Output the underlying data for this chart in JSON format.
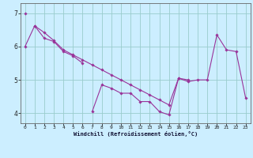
{
  "title": "",
  "xlabel": "Windchill (Refroidissement éolien,°C)",
  "bg_color": "#cceeff",
  "grid_color": "#99cccc",
  "line_color": "#993399",
  "xlim": [
    -0.5,
    23.5
  ],
  "ylim": [
    3.7,
    7.3
  ],
  "yticks": [
    4,
    5,
    6,
    7
  ],
  "xticks": [
    0,
    1,
    2,
    3,
    4,
    5,
    6,
    7,
    8,
    9,
    10,
    11,
    12,
    13,
    14,
    15,
    16,
    17,
    18,
    19,
    20,
    21,
    22,
    23
  ],
  "series_x": [
    [
      0
    ],
    [
      0,
      1,
      2,
      3,
      4,
      5,
      6
    ],
    [
      1,
      2,
      3,
      4,
      5,
      6,
      7,
      8,
      9,
      10,
      11,
      12,
      13,
      14,
      15,
      16,
      17
    ],
    [
      7,
      8,
      9,
      10,
      11,
      12,
      13,
      14,
      15,
      16,
      17,
      18,
      19,
      20,
      21,
      22,
      23
    ]
  ],
  "series_y": [
    [
      7.0
    ],
    [
      6.0,
      6.62,
      6.25,
      6.15,
      5.85,
      5.72,
      5.5
    ],
    [
      6.62,
      6.42,
      6.18,
      5.9,
      5.75,
      5.6,
      5.45,
      5.3,
      5.15,
      5.0,
      4.85,
      4.7,
      4.55,
      4.4,
      4.25,
      5.05,
      5.0
    ],
    [
      4.05,
      4.85,
      4.75,
      4.6,
      4.6,
      4.35,
      4.35,
      4.05,
      3.95,
      5.05,
      4.95,
      5.0,
      5.0,
      6.35,
      5.9,
      5.85,
      4.45
    ]
  ]
}
